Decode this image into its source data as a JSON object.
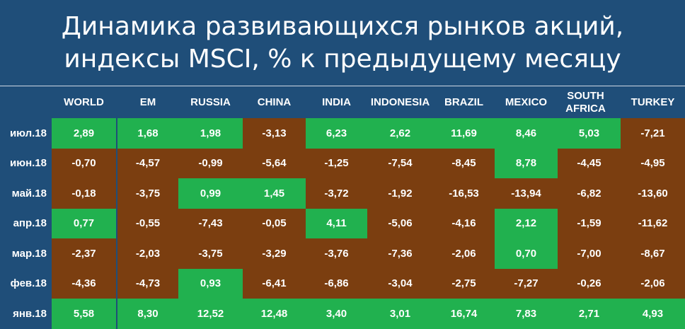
{
  "title": {
    "line1": "Динамика развивающихся рынков акций,",
    "line2": "индексы MSCI, % к предыдущему месяцу"
  },
  "colors": {
    "background": "#1f4e79",
    "positive": "#21b14f",
    "negative": "#7b3e10",
    "text": "#ffffff"
  },
  "chart_data": {
    "type": "table",
    "columns": [
      "WORLD",
      "EM",
      "RUSSIA",
      "CHINA",
      "INDIA",
      "INDONESIA",
      "BRAZIL",
      "MEXICO",
      "SOUTH AFRICA",
      "TURKEY"
    ],
    "rows": [
      {
        "label": "июл.18",
        "values": [
          "2,89",
          "1,68",
          "1,98",
          "-3,13",
          "6,23",
          "2,62",
          "11,69",
          "8,46",
          "5,03",
          "-7,21"
        ]
      },
      {
        "label": "июн.18",
        "values": [
          "-0,70",
          "-4,57",
          "-0,99",
          "-5,64",
          "-1,25",
          "-7,54",
          "-8,45",
          "8,78",
          "-4,45",
          "-4,95"
        ]
      },
      {
        "label": "май.18",
        "values": [
          "-0,18",
          "-3,75",
          "0,99",
          "1,45",
          "-3,72",
          "-1,92",
          "-16,53",
          "-13,94",
          "-6,82",
          "-13,60"
        ]
      },
      {
        "label": "апр.18",
        "values": [
          "0,77",
          "-0,55",
          "-7,43",
          "-0,05",
          "4,11",
          "-5,06",
          "-4,16",
          "2,12",
          "-1,59",
          "-11,62"
        ]
      },
      {
        "label": "мар.18",
        "values": [
          "-2,37",
          "-2,03",
          "-3,75",
          "-3,29",
          "-3,76",
          "-7,36",
          "-2,06",
          "0,70",
          "-7,00",
          "-8,67"
        ]
      },
      {
        "label": "фев.18",
        "values": [
          "-4,36",
          "-4,73",
          "0,93",
          "-6,41",
          "-6,86",
          "-3,04",
          "-2,75",
          "-7,27",
          "-0,26",
          "-2,06"
        ]
      },
      {
        "label": "янв.18",
        "values": [
          "5,58",
          "8,30",
          "12,52",
          "12,48",
          "3,40",
          "3,01",
          "16,74",
          "7,83",
          "2,71",
          "4,93"
        ]
      }
    ]
  }
}
